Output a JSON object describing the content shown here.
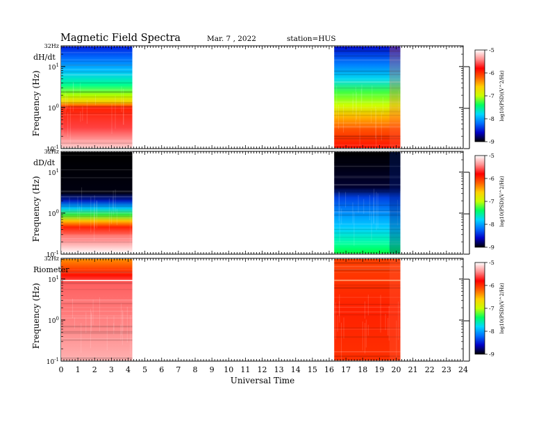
{
  "header": {
    "title": "Magnetic  Field  Spectra",
    "date": "Mar. 7  , 2022",
    "station": "station=HUS"
  },
  "chart_data": {
    "type": "heatmap",
    "xlabel": "Universal Time",
    "x_ticks": [
      "0",
      "1",
      "2",
      "3",
      "4",
      "5",
      "6",
      "7",
      "8",
      "9",
      "10",
      "11",
      "12",
      "13",
      "14",
      "15",
      "16",
      "17",
      "18",
      "19",
      "20",
      "21",
      "22",
      "23",
      "24"
    ],
    "xlim": [
      0,
      24
    ],
    "ylim_hz": [
      0.1,
      32
    ],
    "y_scale": "log",
    "colorbar": {
      "label": "log10(PSD)(V^2/Hz)",
      "ticks": [
        "-5",
        "-6",
        "-7",
        "-8",
        "-9"
      ],
      "range": [
        -9,
        -5
      ],
      "colormap": [
        "#000000",
        "#0000c8",
        "#0070ff",
        "#00d8ff",
        "#00ff60",
        "#c8ff00",
        "#ffd000",
        "#ff6000",
        "#ff0000",
        "#ff9090",
        "#ffffff"
      ]
    },
    "panels": [
      {
        "label": "dH/dt",
        "ylabel": "Frequency  (Hz)",
        "top_label": "32Hz",
        "y_ticks": {
          "t1_base": "10",
          "t1_exp": "1",
          "t0_base": "10",
          "t0_exp": "0",
          "tm_base": "10",
          "tm_exp": "-1"
        },
        "data_intervals_ut": [
          [
            0,
            4.25
          ],
          [
            16.3,
            20.25
          ]
        ]
      },
      {
        "label": "dD/dt",
        "ylabel": "Frequency  (Hz)",
        "top_label": "32Hz",
        "y_ticks": {
          "t1_base": "10",
          "t1_exp": "1",
          "t0_base": "10",
          "t0_exp": "0",
          "tm_base": "10",
          "tm_exp": "-1"
        },
        "data_intervals_ut": [
          [
            0,
            4.25
          ],
          [
            16.3,
            20.25
          ]
        ]
      },
      {
        "label": "Riometer",
        "ylabel": "Frequency  (Hz)",
        "top_label": "32Hz",
        "y_ticks": {
          "t1_base": "10",
          "t1_exp": "1",
          "t0_base": "10",
          "t0_exp": "0",
          "tm_base": "10",
          "tm_exp": "-1"
        },
        "data_intervals_ut": [
          [
            0,
            4.25
          ],
          [
            16.3,
            20.25
          ]
        ]
      }
    ]
  }
}
